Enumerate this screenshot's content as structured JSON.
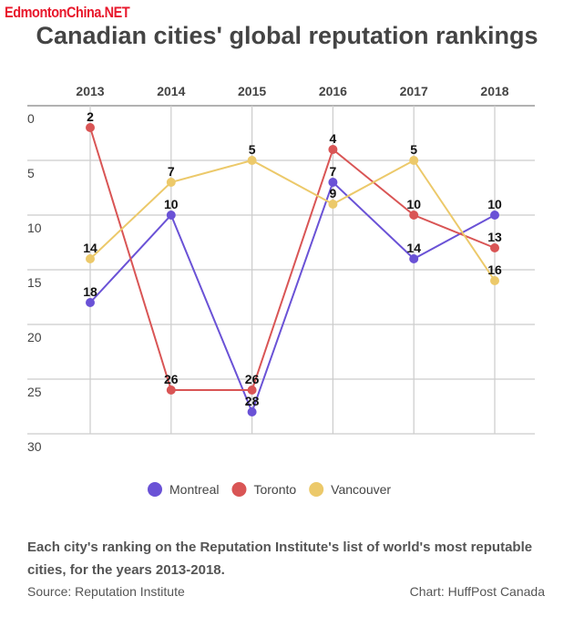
{
  "watermark": "EdmontonChina.NET",
  "chart_data": {
    "type": "line",
    "title": "Canadian cities' global reputation rankings",
    "categories": [
      "2013",
      "2014",
      "2015",
      "2016",
      "2017",
      "2018"
    ],
    "y_ticks": [
      "0",
      "5",
      "10",
      "15",
      "20",
      "25",
      "30"
    ],
    "ylim": [
      0,
      30
    ],
    "y_reversed": true,
    "x_axis_position": "top",
    "grid": true,
    "legend_position": "bottom",
    "series": [
      {
        "name": "Montreal",
        "color": "#6a52d6",
        "values": [
          18,
          10,
          28,
          7,
          14,
          10
        ]
      },
      {
        "name": "Toronto",
        "color": "#d95555",
        "values": [
          2,
          26,
          26,
          4,
          10,
          13
        ]
      },
      {
        "name": "Vancouver",
        "color": "#ecc96a",
        "values": [
          14,
          7,
          5,
          9,
          5,
          16
        ]
      }
    ]
  },
  "note": "Each city's ranking on the Reputation Institute's list of world's most reputable cities, for the years 2013-2018.",
  "source": "Source: Reputation Institute",
  "credit": "Chart: HuffPost Canada"
}
